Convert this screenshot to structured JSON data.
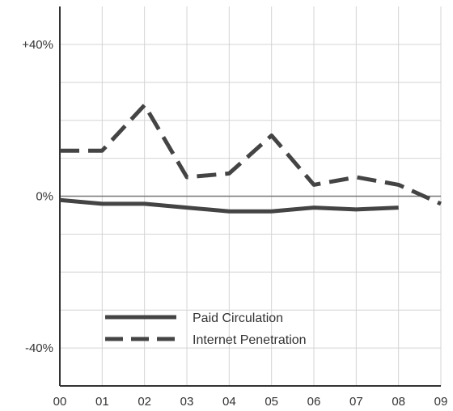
{
  "chart_data": {
    "type": "line",
    "title": "",
    "xlabel": "",
    "ylabel": "",
    "x": [
      "00",
      "01",
      "02",
      "03",
      "04",
      "05",
      "06",
      "07",
      "08",
      "09"
    ],
    "xlim": [
      "00",
      "09"
    ],
    "ylim": [
      -50,
      50
    ],
    "y_ticks": [
      {
        "value": 40,
        "label": "+40%"
      },
      {
        "value": 0,
        "label": "0%"
      },
      {
        "value": -40,
        "label": "-40%"
      }
    ],
    "grid": true,
    "legend_position": "bottom-left",
    "series": [
      {
        "name": "Paid Circulation",
        "style": "solid",
        "color": "#444444",
        "x": [
          "00",
          "01",
          "02",
          "03",
          "04",
          "05",
          "06",
          "07",
          "08"
        ],
        "values": [
          -1,
          -2,
          -2,
          -3,
          -4,
          -4,
          -3,
          -3.5,
          -3
        ]
      },
      {
        "name": "Internet Penetration",
        "style": "dashed",
        "color": "#444444",
        "x": [
          "00",
          "01",
          "02",
          "03",
          "04",
          "05",
          "06",
          "07",
          "08",
          "09"
        ],
        "values": [
          12,
          12,
          24,
          5,
          6,
          16,
          3,
          5,
          3,
          -2
        ]
      }
    ]
  }
}
